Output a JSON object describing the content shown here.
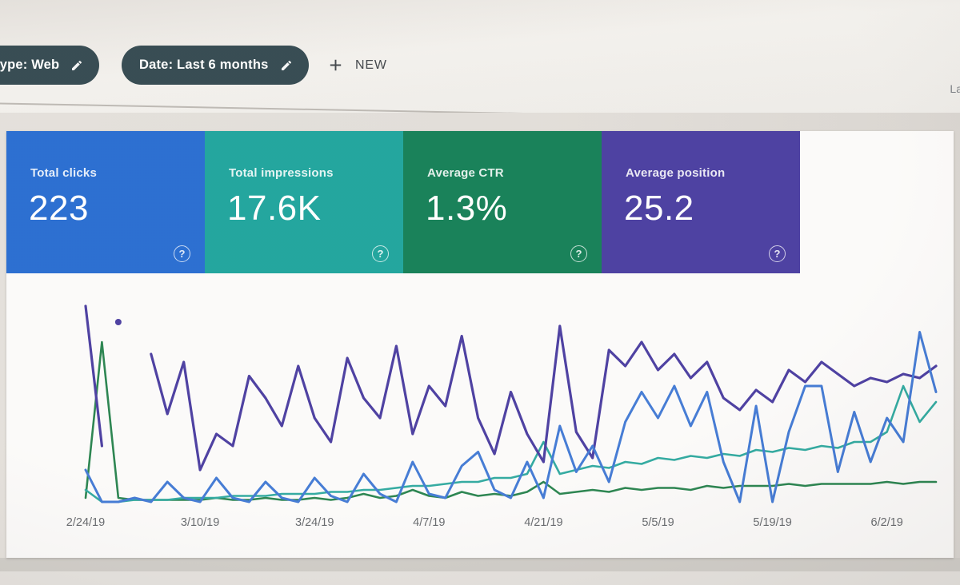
{
  "window": {
    "partial_right_text": "La"
  },
  "filter_bar": {
    "chip_bg": "#2e444b",
    "chips": [
      {
        "label": "type: Web",
        "icon": "pencil-icon"
      },
      {
        "label": "Date: Last 6 months",
        "icon": "pencil-icon"
      }
    ],
    "new_button_label": "NEW",
    "new_button_icon": "plus-icon"
  },
  "summary_cards": [
    {
      "label": "Total clicks",
      "value": "223",
      "color": "#2268cf",
      "help_icon": "question-circle-icon"
    },
    {
      "label": "Total impressions",
      "value": "17.6K",
      "color": "#18a29a",
      "help_icon": "question-circle-icon"
    },
    {
      "label": "Average CTR",
      "value": "1.3%",
      "color": "#0e7c52",
      "help_icon": "question-circle-icon"
    },
    {
      "label": "Average position",
      "value": "25.2",
      "color": "#45389e",
      "help_icon": "question-circle-icon"
    }
  ],
  "chart_data": {
    "type": "line",
    "grid": false,
    "legend": false,
    "x_labels": [
      "2/24/19",
      "3/10/19",
      "3/24/19",
      "4/7/19",
      "4/21/19",
      "5/5/19",
      "5/19/19",
      "6/2/19"
    ],
    "x_label_days": [
      0,
      14,
      28,
      42,
      56,
      70,
      84,
      98
    ],
    "day_span": 104,
    "sample_interval_days": 2,
    "y_axis_note": "no visible y axis; values are percent of plot height, each series independently scaled",
    "draw_order": [
      2,
      1,
      3,
      0
    ],
    "series": [
      {
        "name": "Total clicks",
        "color": "#3d76d3",
        "stroke_width": 3,
        "values": [
          16,
          0,
          0,
          2,
          0,
          10,
          2,
          0,
          12,
          2,
          0,
          10,
          2,
          0,
          12,
          3,
          0,
          14,
          4,
          0,
          20,
          4,
          2,
          18,
          25,
          6,
          2,
          20,
          2,
          38,
          15,
          28,
          10,
          40,
          55,
          42,
          58,
          38,
          55,
          20,
          0,
          48,
          0,
          35,
          58,
          58,
          15,
          45,
          20,
          42,
          30,
          85,
          55
        ]
      },
      {
        "name": "Total impressions",
        "color": "#2aa79d",
        "stroke_width": 2.6,
        "values": [
          6,
          0,
          0,
          1,
          1,
          1,
          2,
          2,
          2,
          3,
          3,
          3,
          4,
          4,
          4,
          5,
          5,
          6,
          6,
          7,
          8,
          8,
          9,
          10,
          10,
          12,
          12,
          14,
          30,
          14,
          16,
          18,
          17,
          20,
          19,
          22,
          21,
          23,
          22,
          24,
          23,
          26,
          25,
          27,
          26,
          28,
          27,
          30,
          30,
          35,
          58,
          40,
          50
        ]
      },
      {
        "name": "Average CTR",
        "color": "#23804a",
        "stroke_width": 2.6,
        "values": [
          2,
          80,
          2,
          1,
          1,
          1,
          1,
          1,
          2,
          1,
          1,
          2,
          1,
          1,
          2,
          1,
          2,
          4,
          2,
          3,
          6,
          3,
          2,
          5,
          3,
          4,
          3,
          5,
          10,
          4,
          5,
          6,
          5,
          7,
          6,
          7,
          7,
          6,
          8,
          7,
          8,
          8,
          8,
          9,
          8,
          9,
          9,
          9,
          9,
          10,
          9,
          10,
          10
        ]
      },
      {
        "name": "Average position",
        "color": "#46389e",
        "stroke_width": 3.2,
        "values": [
          98,
          28,
          null,
          null,
          74,
          44,
          70,
          16,
          34,
          28,
          63,
          52,
          38,
          68,
          42,
          30,
          72,
          52,
          42,
          78,
          34,
          58,
          48,
          83,
          42,
          24,
          55,
          34,
          20,
          88,
          35,
          22,
          76,
          68,
          80,
          66,
          74,
          62,
          70,
          52,
          46,
          56,
          50,
          66,
          60,
          70,
          64,
          58,
          62,
          60,
          64,
          62,
          68
        ],
        "isolated_point": {
          "day": 4,
          "value": 90
        }
      }
    ]
  }
}
